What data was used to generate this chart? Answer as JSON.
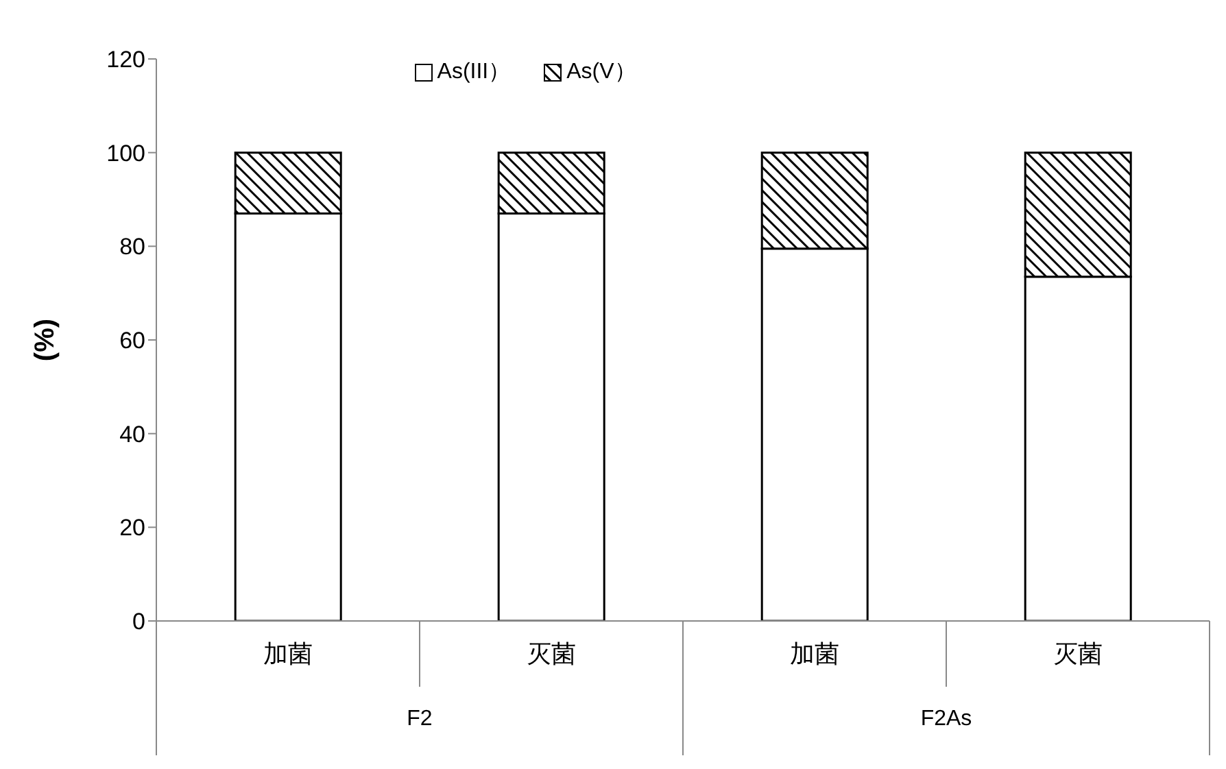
{
  "chart_data": {
    "type": "bar",
    "stacked": true,
    "ylabel": "(%)",
    "categories": [
      "加菌",
      "灭菌",
      "加菌",
      "灭菌"
    ],
    "series": [
      {
        "name": "As(III）",
        "color": "#ffffff",
        "values": [
          87,
          87,
          79.5,
          73.5
        ]
      },
      {
        "name": "As(V）",
        "color": "#000000",
        "values": [
          13,
          13,
          20.5,
          26.5
        ]
      }
    ],
    "annotations": [
      "F2",
      "F2As"
    ],
    "ylim": [
      0,
      120
    ],
    "yticks": [
      0,
      20,
      40,
      60,
      80,
      100,
      120
    ],
    "grid": false,
    "legend": "top"
  }
}
